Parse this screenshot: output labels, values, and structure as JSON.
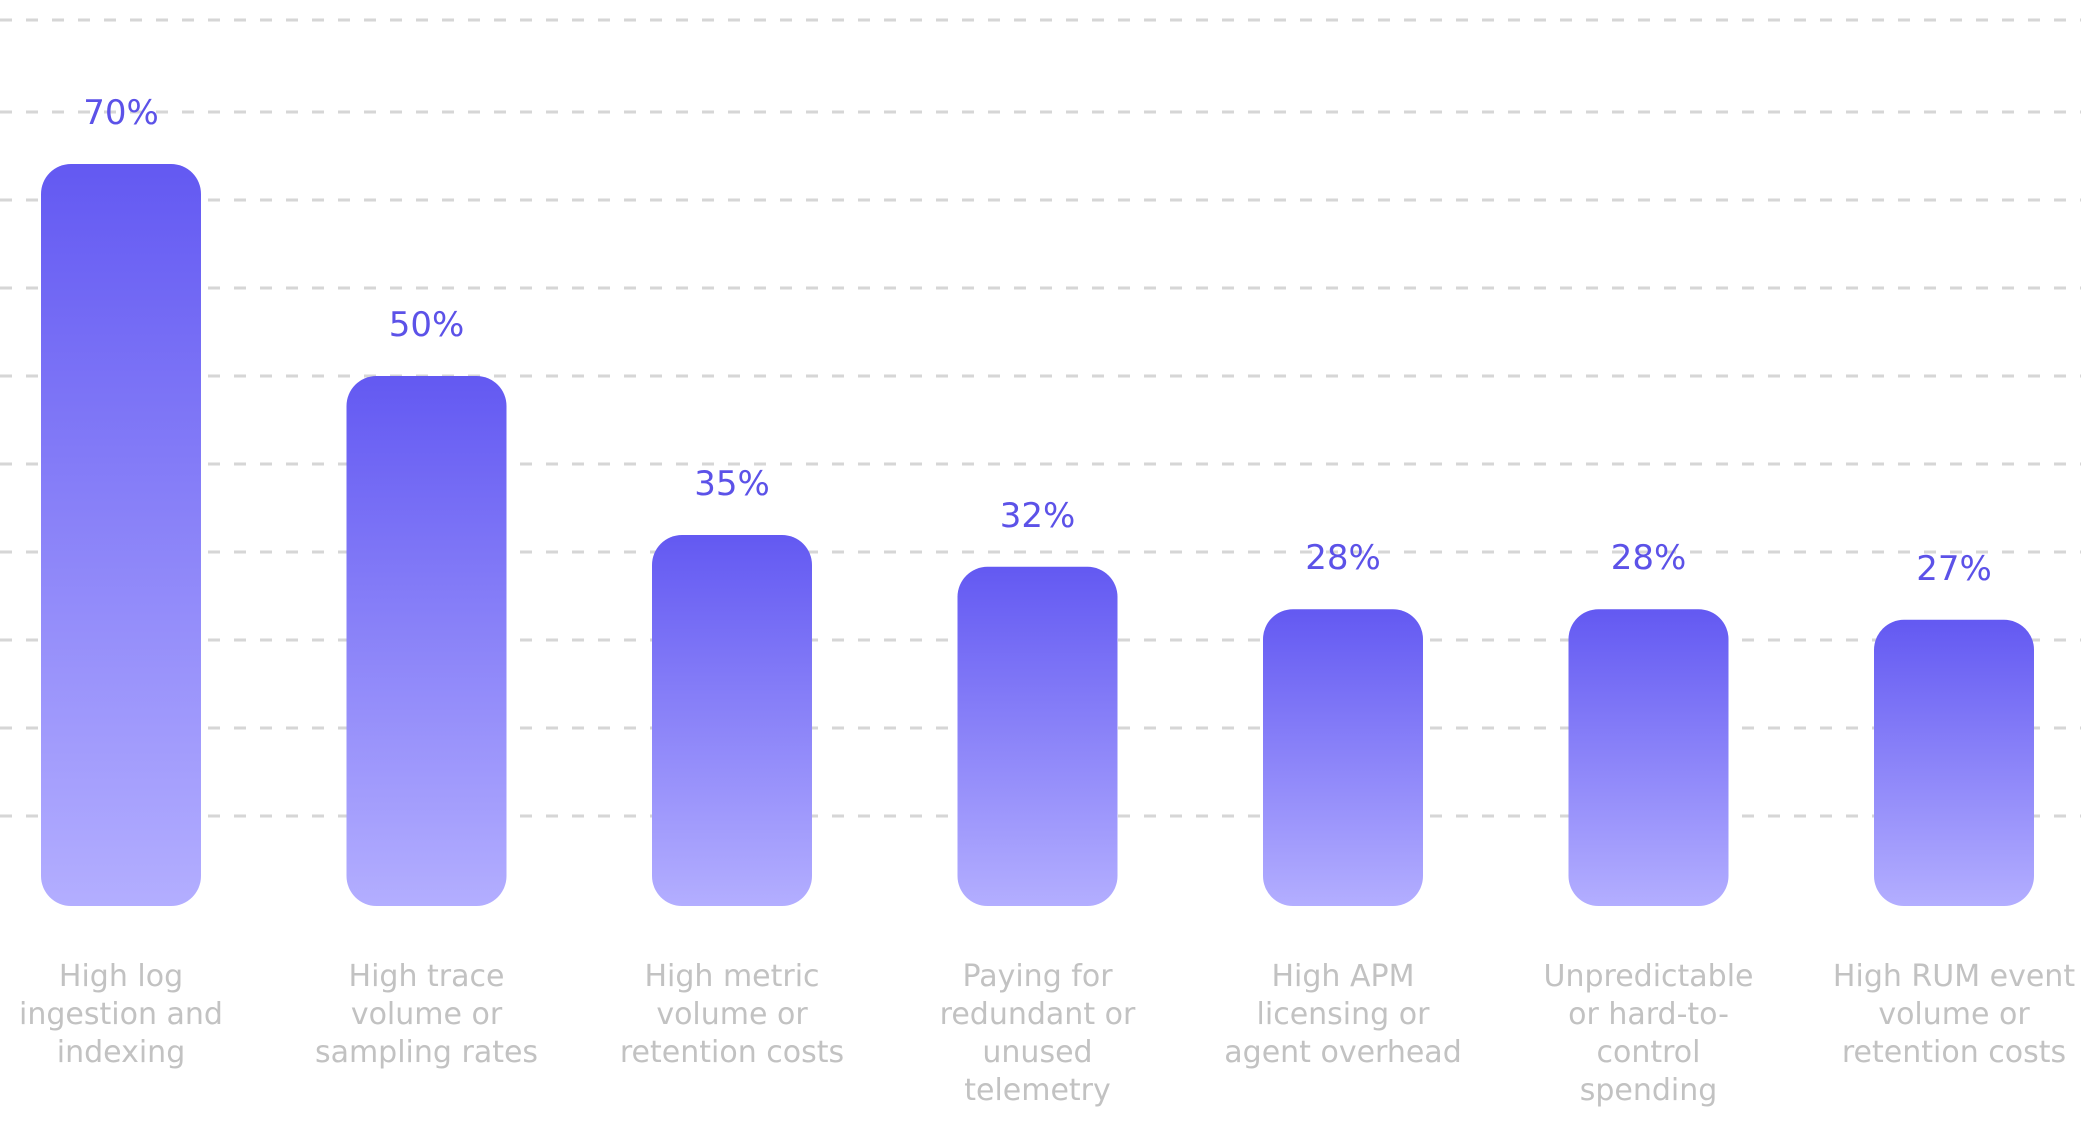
{
  "chart_data": {
    "type": "bar",
    "categories": [
      "High log ingestion and indexing",
      "High trace volume or sampling rates",
      "High metric volume or retention costs",
      "Paying for redundant or unused telemetry",
      "High APM licensing or agent overhead",
      "Unpredictable or hard-to-control spending",
      "High RUM event volume or retention costs"
    ],
    "category_lines": [
      [
        "High log",
        "ingestion and",
        "indexing"
      ],
      [
        "High trace",
        "volume or",
        "sampling rates"
      ],
      [
        "High metric",
        "volume or",
        "retention costs"
      ],
      [
        "Paying for",
        "redundant or",
        "unused",
        "telemetry"
      ],
      [
        "High APM",
        "licensing or",
        "agent overhead"
      ],
      [
        "Unpredictable",
        "or hard-to-",
        "control",
        "spending"
      ],
      [
        "High RUM event",
        "volume or",
        "retention costs"
      ]
    ],
    "values": [
      70,
      50,
      35,
      32,
      28,
      28,
      27
    ],
    "value_labels": [
      "70%",
      "50%",
      "35%",
      "32%",
      "28%",
      "28%",
      "27%"
    ],
    "unit": "%",
    "ylim": [
      0,
      85
    ],
    "grid": true,
    "grid_style": "dashed",
    "legend": "none",
    "colors": {
      "bar_top": "#6359F2",
      "bar_bottom": "#B3AEFF",
      "value_label": "#5C52E8",
      "category_label": "#C2C2C2",
      "grid": "#D6D6D6"
    }
  }
}
